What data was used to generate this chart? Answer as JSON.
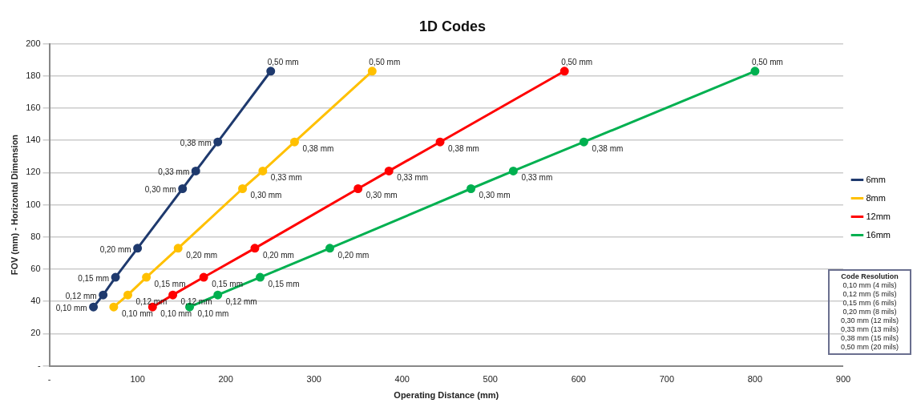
{
  "chart_data": {
    "type": "line",
    "title": "1D Codes",
    "xlabel": "Operating Distance (mm)",
    "ylabel": "FOV (mm) - Horizontal Dimension",
    "xlim": [
      0,
      900
    ],
    "xticks": [
      {
        "value": 0,
        "label": "-"
      },
      100,
      200,
      300,
      400,
      500,
      600,
      700,
      800,
      900
    ],
    "ylim": [
      0,
      200
    ],
    "yticks": [
      {
        "value": 0,
        "label": "-"
      },
      20,
      40,
      60,
      80,
      100,
      120,
      140,
      160,
      180,
      200
    ],
    "grid": "y",
    "legend": "right",
    "marker": "circle",
    "line_style": "solid",
    "series": [
      {
        "name": "6mm",
        "color": "#1f3a6e",
        "x": [
          50,
          61,
          75,
          100,
          151,
          166,
          191,
          251
        ],
        "values": [
          36.5,
          44,
          55,
          73,
          110,
          121,
          139,
          183
        ]
      },
      {
        "name": "8mm",
        "color": "#ffc000",
        "x": [
          73,
          89,
          110,
          146,
          219,
          242,
          278,
          366
        ],
        "values": [
          36.5,
          44,
          55,
          73,
          110,
          121,
          139,
          183
        ]
      },
      {
        "name": "12mm",
        "color": "#ff0000",
        "x": [
          117,
          140,
          175,
          233,
          350,
          385,
          443,
          584
        ],
        "values": [
          36.5,
          44,
          55,
          73,
          110,
          121,
          139,
          183
        ]
      },
      {
        "name": "16mm",
        "color": "#00b050",
        "x": [
          159,
          191,
          239,
          318,
          478,
          526,
          606,
          800
        ],
        "values": [
          36.5,
          44,
          55,
          73,
          110,
          121,
          139,
          183
        ]
      }
    ],
    "annotations": [
      {
        "text": "0,10 mm",
        "x": 50,
        "y": 36.5
      },
      {
        "text": "0,12 mm",
        "x": 61,
        "y": 44
      },
      {
        "text": "0,15 mm",
        "x": 75,
        "y": 55
      },
      {
        "text": "0,20 mm",
        "x": 100,
        "y": 73
      },
      {
        "text": "0,30 mm",
        "x": 151,
        "y": 110
      },
      {
        "text": "0,33 mm",
        "x": 166,
        "y": 121
      },
      {
        "text": "0,38 mm",
        "x": 191,
        "y": 139
      },
      {
        "text": "0,50 mm",
        "x": 251,
        "y": 183
      },
      {
        "text": "0,10 mm",
        "x": 73,
        "y": 36.5
      },
      {
        "text": "0,12 mm",
        "x": 89,
        "y": 44
      },
      {
        "text": "0,15 mm",
        "x": 110,
        "y": 55
      },
      {
        "text": "0,20 mm",
        "x": 146,
        "y": 73
      },
      {
        "text": "0,30 mm",
        "x": 219,
        "y": 110
      },
      {
        "text": "0,33 mm",
        "x": 242,
        "y": 121
      },
      {
        "text": "0,38 mm",
        "x": 278,
        "y": 139
      },
      {
        "text": "0,50 mm",
        "x": 366,
        "y": 183
      },
      {
        "text": "0,10 mm",
        "x": 117,
        "y": 36.5
      },
      {
        "text": "0,12 mm",
        "x": 140,
        "y": 44
      },
      {
        "text": "0,15 mm",
        "x": 175,
        "y": 55
      },
      {
        "text": "0,20 mm",
        "x": 233,
        "y": 73
      },
      {
        "text": "0,30 mm",
        "x": 350,
        "y": 110
      },
      {
        "text": "0,33 mm",
        "x": 385,
        "y": 121
      },
      {
        "text": "0,38 mm",
        "x": 443,
        "y": 139
      },
      {
        "text": "0,50 mm",
        "x": 584,
        "y": 183
      },
      {
        "text": "0,10 mm",
        "x": 159,
        "y": 36.5
      },
      {
        "text": "0,12 mm",
        "x": 191,
        "y": 44
      },
      {
        "text": "0,15 mm",
        "x": 239,
        "y": 55
      },
      {
        "text": "0,20 mm",
        "x": 318,
        "y": 73
      },
      {
        "text": "0,30 mm",
        "x": 478,
        "y": 110
      },
      {
        "text": "0,33 mm",
        "x": 526,
        "y": 121
      },
      {
        "text": "0,38 mm",
        "x": 606,
        "y": 139
      },
      {
        "text": "0,50 mm",
        "x": 800,
        "y": 183
      },
      "Code Resolution",
      "0,10 mm (4 mils)",
      "0,12 mm (5 mils)",
      "0,15 mm (6 mils)",
      "0,20 mm (8 mils)",
      "0,30 mm (12 mils)",
      "0,33 mm (13 mils)",
      "0,38 mm (15 mils)",
      "0,50 mm (20 mils)"
    ]
  }
}
